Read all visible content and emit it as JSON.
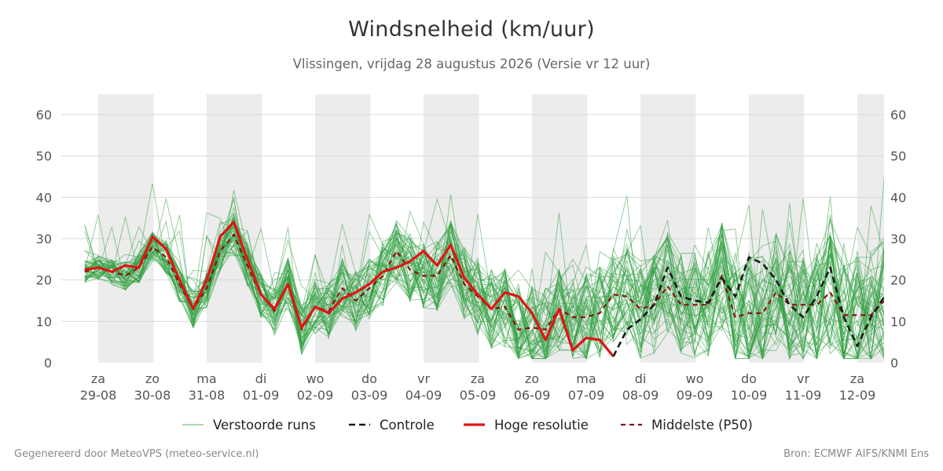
{
  "title": "Windsnelheid (km/uur)",
  "subtitle": "Vlissingen, vrijdag 28 augustus 2026 (Versie vr 12 uur)",
  "footer": {
    "left": "Gegenereerd door MeteoVPS (meteo-service.nl)",
    "right": "Bron: ECMWF AIFS/KNMI Ens"
  },
  "colors": {
    "ensemble": "#2e9e3e",
    "control": "#1a1a1a",
    "high_res": "#e01414",
    "median": "#8b1010",
    "night_band": "#ececec",
    "grid": "#d9d9d9"
  },
  "chart_data": {
    "type": "line",
    "title": "Windsnelheid (km/uur)",
    "xlabel": "",
    "ylabel": "",
    "ylim": [
      0,
      65
    ],
    "xlim": [
      0,
      14.5
    ],
    "x_unit": "days since za 29-08 12:00",
    "y_ticks": [
      0,
      10,
      20,
      30,
      40,
      50,
      60
    ],
    "x_ticks": [
      {
        "day": "za",
        "date": "29-08"
      },
      {
        "day": "zo",
        "date": "30-08"
      },
      {
        "day": "ma",
        "date": "31-08"
      },
      {
        "day": "di",
        "date": "01-09"
      },
      {
        "day": "wo",
        "date": "02-09"
      },
      {
        "day": "do",
        "date": "03-09"
      },
      {
        "day": "vr",
        "date": "04-09"
      },
      {
        "day": "za",
        "date": "05-09"
      },
      {
        "day": "zo",
        "date": "06-09"
      },
      {
        "day": "ma",
        "date": "07-09"
      },
      {
        "day": "di",
        "date": "08-09"
      },
      {
        "day": "wo",
        "date": "09-09"
      },
      {
        "day": "do",
        "date": "10-09"
      },
      {
        "day": "vr",
        "date": "11-09"
      },
      {
        "day": "za",
        "date": "12-09"
      }
    ],
    "grid": true,
    "legend_position": "bottom",
    "legend": [
      "Verstoorde runs",
      "Controle",
      "Hoge resolutie",
      "Middelste (P50)"
    ],
    "series": [
      {
        "name": "Hoge resolutie",
        "style": "solid-thick",
        "x": [
          -0.25,
          0,
          0.25,
          0.5,
          0.75,
          1,
          1.25,
          1.5,
          1.75,
          2,
          2.25,
          2.5,
          2.75,
          3,
          3.25,
          3.5,
          3.75,
          4,
          4.25,
          4.5,
          4.75,
          5,
          5.25,
          5.5,
          5.75,
          6,
          6.25,
          6.5,
          6.75,
          7,
          7.25,
          7.5,
          7.75,
          8,
          8.25,
          8.5,
          8.75,
          9,
          9.25,
          9.5
        ],
        "values": [
          22.5,
          23,
          22,
          23.5,
          23,
          30.5,
          27.5,
          20,
          13,
          20,
          30.5,
          34,
          25,
          16.5,
          13,
          19,
          8.5,
          13.5,
          12,
          15.5,
          17,
          19,
          22,
          23,
          24.5,
          27,
          23.5,
          28.5,
          20.5,
          16.5,
          13,
          17,
          16,
          12,
          5.5,
          13,
          3,
          6,
          5.5,
          1.5
        ]
      },
      {
        "name": "Controle",
        "style": "dashed",
        "x": [
          9.5,
          9.75,
          10,
          10.25,
          10.5,
          10.75,
          11,
          11.25,
          11.5,
          11.75,
          12,
          12.25,
          12.5,
          12.75,
          13,
          13.25,
          13.5,
          13.75,
          14,
          14.25,
          14.5
        ],
        "values": [
          1.5,
          8,
          10.5,
          14,
          23,
          16,
          15,
          14.5,
          20.5,
          16,
          25.5,
          24,
          20,
          14,
          11,
          16,
          23,
          11,
          4,
          11,
          16
        ]
      },
      {
        "name": "Middelste (P50)",
        "style": "dashed",
        "x": [
          -0.25,
          0,
          0.25,
          0.5,
          0.75,
          1,
          1.25,
          1.5,
          1.75,
          2,
          2.25,
          2.5,
          2.75,
          3,
          3.25,
          3.5,
          3.75,
          4,
          4.25,
          4.5,
          4.75,
          5,
          5.25,
          5.5,
          5.75,
          6,
          6.25,
          6.5,
          6.75,
          7,
          7.25,
          7.5,
          7.75,
          8,
          8.25,
          8.5,
          8.75,
          9,
          9.25,
          9.5,
          9.75,
          10,
          10.25,
          10.5,
          10.75,
          11,
          11.25,
          11.5,
          11.75,
          12,
          12.25,
          12.5,
          12.75,
          13,
          13.25,
          13.5,
          13.75,
          14,
          14.25,
          14.5
        ],
        "values": [
          22,
          23,
          22,
          21,
          23,
          28,
          25.5,
          19,
          13,
          18,
          27,
          31,
          23.5,
          16.5,
          12.5,
          19,
          8,
          13.5,
          12.5,
          18,
          15,
          18,
          21,
          27,
          22.5,
          21,
          21,
          26,
          19,
          16,
          13,
          13.5,
          8,
          8.5,
          8,
          13,
          11,
          11,
          12,
          16.5,
          16,
          13,
          14,
          18.5,
          14,
          14,
          14,
          21,
          11,
          12,
          12,
          17,
          14,
          14,
          14,
          17,
          11.5,
          11.5,
          11.5,
          15
        ]
      }
    ]
  }
}
